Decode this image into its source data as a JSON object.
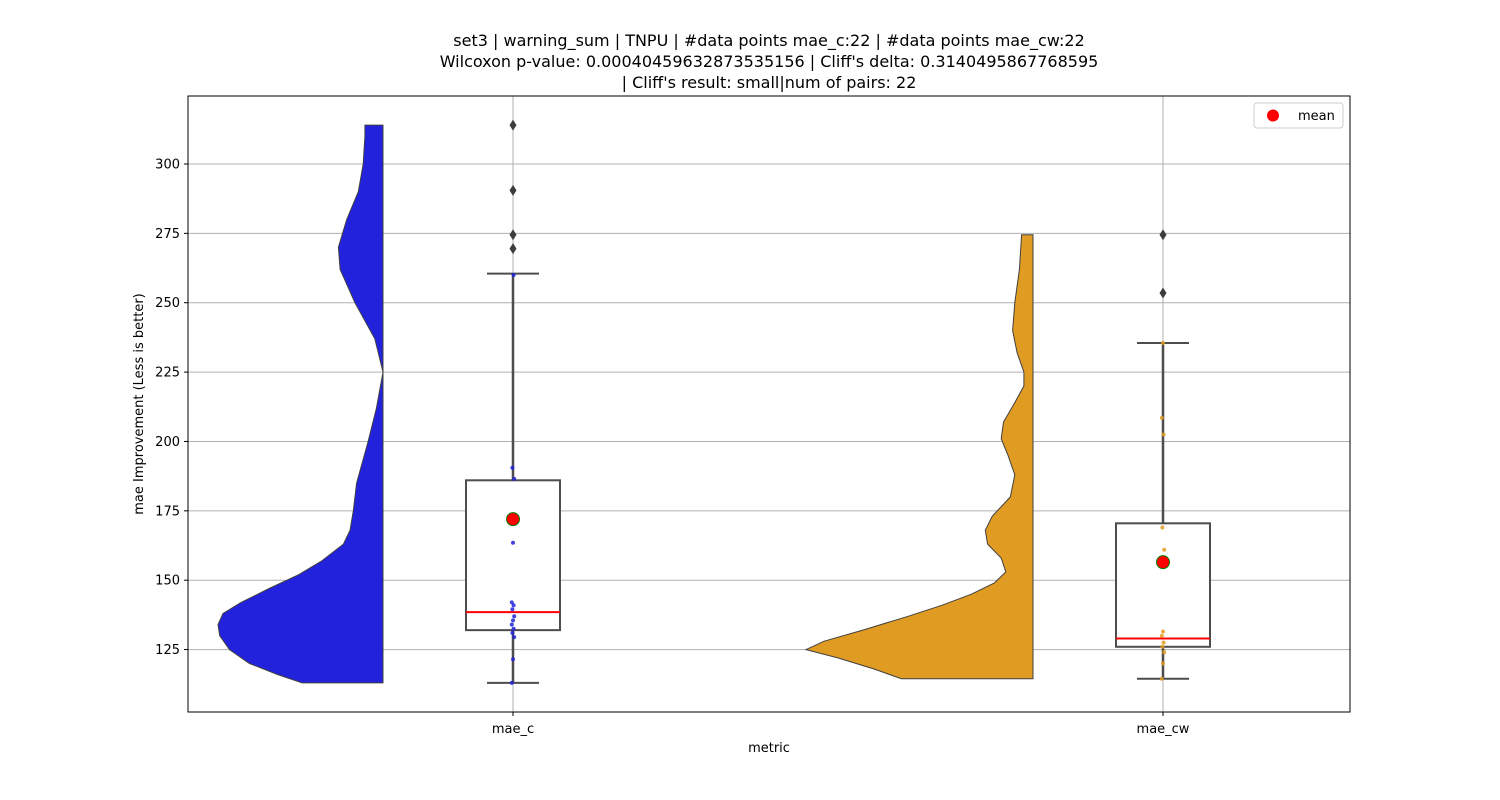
{
  "chart_data": {
    "type": "violin-box",
    "title_lines": [
      "set3 | warning_sum | TNPU | #data points mae_c:22 | #data points mae_cw:22",
      "Wilcoxon p-value: 0.00040459632873535156 | Cliff's delta: 0.3140495867768595",
      "| Cliff's result: small|num of pairs: 22"
    ],
    "xlabel": "metric",
    "ylabel": "mae Improvement (Less is better)",
    "ylim": [
      102.5,
      324.5
    ],
    "yticks": [
      125,
      150,
      175,
      200,
      225,
      250,
      275,
      300
    ],
    "grid": true,
    "legend": {
      "label": "mean",
      "color": "#ff0000",
      "placement": "top-right"
    },
    "categories": [
      "mae_c",
      "mae_cw"
    ],
    "groups": [
      {
        "name": "mae_c",
        "color": "#2222dd",
        "box": {
          "whisker_low": 113,
          "q1": 132,
          "median": 138.5,
          "q3": 186,
          "whisker_high": 260.5
        },
        "mean": 172,
        "outliers": [
          269.5,
          274.5,
          290.5,
          314
        ],
        "points": [
          113,
          121.5,
          129.5,
          131,
          132.5,
          134,
          135.5,
          137,
          139.5,
          141,
          142,
          163.5,
          186.5,
          190.5,
          260
        ],
        "violin_range": [
          113,
          314
        ],
        "violin_profile": [
          [
            113,
            0.49
          ],
          [
            116,
            0.64
          ],
          [
            120,
            0.81
          ],
          [
            125,
            0.93
          ],
          [
            130,
            0.99
          ],
          [
            134,
            1.0
          ],
          [
            138,
            0.97
          ],
          [
            142,
            0.86
          ],
          [
            147,
            0.69
          ],
          [
            152,
            0.51
          ],
          [
            157,
            0.37
          ],
          [
            163,
            0.24
          ],
          [
            168,
            0.2
          ],
          [
            175,
            0.18
          ],
          [
            185,
            0.16
          ],
          [
            200,
            0.09
          ],
          [
            212,
            0.04
          ],
          [
            225,
            0.0
          ],
          [
            237,
            0.05
          ],
          [
            250,
            0.17
          ],
          [
            262,
            0.26
          ],
          [
            270,
            0.27
          ],
          [
            280,
            0.22
          ],
          [
            290,
            0.15
          ],
          [
            300,
            0.12
          ],
          [
            310,
            0.11
          ],
          [
            314,
            0.11
          ]
        ]
      },
      {
        "name": "mae_cw",
        "color": "#e09b22",
        "box": {
          "whisker_low": 114.5,
          "q1": 126,
          "median": 129,
          "q3": 170.5,
          "whisker_high": 235.5
        },
        "mean": 156.5,
        "outliers": [
          253.5,
          274.5
        ],
        "points": [
          114.5,
          120,
          124,
          126,
          127.5,
          130,
          131.5,
          161,
          169,
          202.5,
          208.5,
          235.5
        ],
        "violin_range": [
          114.5,
          274.5
        ],
        "violin_profile": [
          [
            114.5,
            0.58
          ],
          [
            118,
            0.7
          ],
          [
            122,
            0.86
          ],
          [
            125,
            1.0
          ],
          [
            128,
            0.92
          ],
          [
            132,
            0.75
          ],
          [
            137,
            0.55
          ],
          [
            141,
            0.4
          ],
          [
            145,
            0.27
          ],
          [
            149,
            0.17
          ],
          [
            153,
            0.12
          ],
          [
            158,
            0.14
          ],
          [
            163,
            0.2
          ],
          [
            168,
            0.21
          ],
          [
            173,
            0.18
          ],
          [
            180,
            0.1
          ],
          [
            188,
            0.08
          ],
          [
            195,
            0.11
          ],
          [
            201,
            0.14
          ],
          [
            207,
            0.13
          ],
          [
            214,
            0.08
          ],
          [
            220,
            0.04
          ],
          [
            225,
            0.04
          ],
          [
            232,
            0.07
          ],
          [
            240,
            0.09
          ],
          [
            250,
            0.08
          ],
          [
            262,
            0.06
          ],
          [
            274.5,
            0.05
          ]
        ]
      }
    ]
  },
  "colors": {
    "median": "#ff0000",
    "mean_fill": "#ff0000",
    "mean_edge": "#008000",
    "box_edge": "#4d4d4d",
    "outlier": "#3d3d3d",
    "grid": "#b0b0b0"
  }
}
